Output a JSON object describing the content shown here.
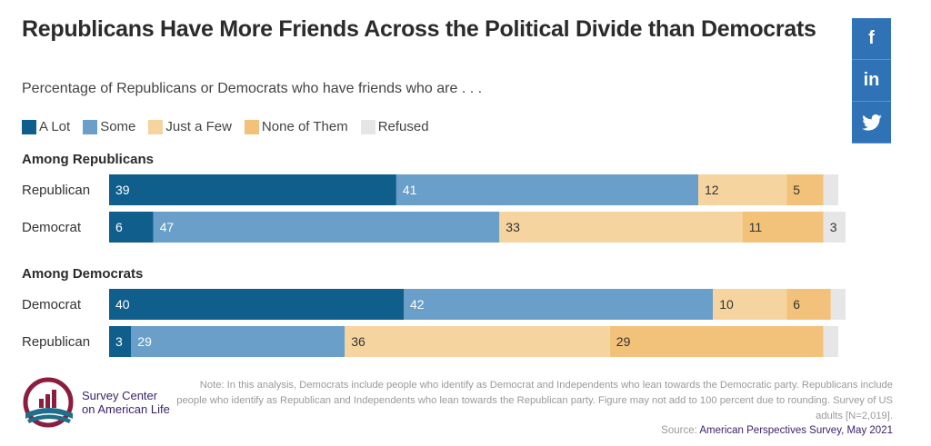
{
  "title": "Republicans Have More Friends Across the Political Divide than Democrats",
  "subtitle": "Percentage of Republicans or Democrats who have friends who are . . .",
  "social": [
    {
      "icon": "facebook-icon",
      "label": "f"
    },
    {
      "icon": "linkedin-icon",
      "label": "in"
    },
    {
      "icon": "twitter-icon",
      "label": ""
    }
  ],
  "chart_data": {
    "type": "bar",
    "orientation": "horizontal",
    "stacked": true,
    "xlim": [
      0,
      100
    ],
    "series": [
      {
        "name": "A Lot",
        "color": "#0f5e8c"
      },
      {
        "name": "Some",
        "color": "#6a9fc9"
      },
      {
        "name": "Just a Few",
        "color": "#f5d4a0"
      },
      {
        "name": "None of Them",
        "color": "#f2c27a"
      },
      {
        "name": "Refused",
        "color": "#e6e6e6"
      }
    ],
    "groups": [
      {
        "label": "Among Republicans",
        "rows": [
          {
            "category": "Republican",
            "values": [
              39,
              41,
              12,
              5,
              2
            ],
            "labels": [
              "39",
              "41",
              "12",
              "5",
              ""
            ]
          },
          {
            "category": "Democrat",
            "values": [
              6,
              47,
              33,
              11,
              3
            ],
            "labels": [
              "6",
              "47",
              "33",
              "11",
              "3"
            ]
          }
        ]
      },
      {
        "label": "Among Democrats",
        "rows": [
          {
            "category": "Democrat",
            "values": [
              40,
              42,
              10,
              6,
              2
            ],
            "labels": [
              "40",
              "42",
              "10",
              "6",
              ""
            ]
          },
          {
            "category": "Republican",
            "values": [
              3,
              29,
              36,
              29,
              2
            ],
            "labels": [
              "3",
              "29",
              "36",
              "29",
              ""
            ]
          }
        ]
      }
    ]
  },
  "logo": {
    "line1": "Survey Center",
    "line2": "on American Life"
  },
  "note": "Note: In this analysis, Democrats include people who identify as Democrat and Independents who lean towards the Democratic party. Republicans include people who identify as Republican and Independents who lean towards the Republican party. Figure may not add to 100 percent due to rounding. Survey of US adults [N=2,019].",
  "source_label": "Source:",
  "source_name": "American Perspectives Survey, May 2021"
}
